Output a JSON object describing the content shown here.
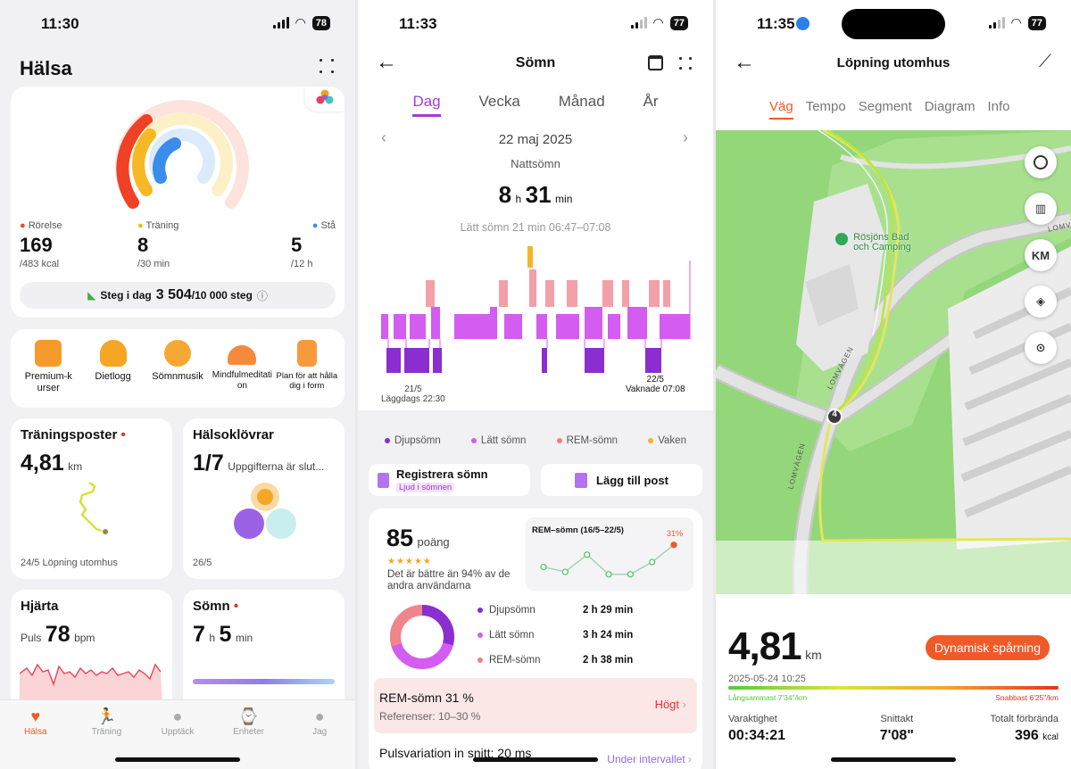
{
  "s1": {
    "status": {
      "time": "11:30",
      "battery": "78"
    },
    "title": "Hälsa",
    "rings": {
      "items": [
        {
          "label": "Rörelse",
          "value": "169",
          "goal": "/483 kcal",
          "color": "#f0462d",
          "progress": 0.35
        },
        {
          "label": "Träning",
          "value": "8",
          "goal": "/30 min",
          "color": "#f6b925",
          "progress": 0.27
        },
        {
          "label": "Stå",
          "value": "5",
          "goal": "/12 h",
          "color": "#3a8dea",
          "progress": 0.42
        }
      ],
      "steps_prefix": "Steg i dag",
      "steps_value": "3 504",
      "steps_goal": "/10 000 steg"
    },
    "shortcuts": [
      {
        "label": "Premium-kurser"
      },
      {
        "label": "Dietlogg"
      },
      {
        "label": "Sömnmusik"
      },
      {
        "label": "Mindfulmeditation"
      },
      {
        "label": "Plan för att hålla dig i form"
      }
    ],
    "training": {
      "title": "Träningsposter",
      "value": "4,81",
      "unit": "km",
      "footer": "24/5 Löpning utomhus"
    },
    "clovers": {
      "title": "Hälsoklövrar",
      "value": "1/7",
      "sub": "Uppgifterna är slut...",
      "footer": "26/5"
    },
    "heart": {
      "title": "Hjärta",
      "prefix": "Puls",
      "value": "78",
      "unit": "bpm"
    },
    "sleep": {
      "title": "Sömn",
      "h": "7",
      "h_unit": "h",
      "m": "5",
      "m_unit": "min"
    },
    "nav": [
      "Hälsa",
      "Träning",
      "Upptäck",
      "Enheter",
      "Jag"
    ]
  },
  "s2": {
    "status": {
      "time": "11:33",
      "battery": "77"
    },
    "title": "Sömn",
    "tabs": [
      "Dag",
      "Vecka",
      "Månad",
      "År"
    ],
    "date": "22 maj 2025",
    "type": "Nattsömn",
    "dur_h": "8",
    "dur_h_unit": "h",
    "dur_m": "31",
    "dur_m_unit": "min",
    "info": "Lätt sömn 21 min 06:47–07:08",
    "start_date": "21/5",
    "start_label": "Läggdags 22:30",
    "end_date": "22/5",
    "end_label": "Vaknade 07:08",
    "legend": [
      {
        "label": "Djupsömn",
        "color": "#8a2ed0"
      },
      {
        "label": "Lätt sömn",
        "color": "#d45cf0"
      },
      {
        "label": "REM-sömn",
        "color": "#f07f80"
      },
      {
        "label": "Vaken",
        "color": "#f5b52a"
      }
    ],
    "btn_register": "Registrera sömn",
    "btn_register_badge": "Ljud i sömnen",
    "btn_add": "Lägg till post",
    "score": "85",
    "score_unit": "poäng",
    "score_text": "Det är bättre än 94% av de andra användarna",
    "rem_chart": {
      "title": "REM–sömn (16/5–22/5)",
      "label": "31%",
      "values": [
        22,
        20,
        27,
        19,
        19,
        24,
        31
      ]
    },
    "breakdown": [
      {
        "label": "Djupsömn",
        "value": "2 h 29 min",
        "color": "#8a2ed0"
      },
      {
        "label": "Lätt sömn",
        "value": "3 h 24 min",
        "color": "#d45cf0"
      },
      {
        "label": "REM-sömn",
        "value": "2 h 38 min",
        "color": "#f07f80"
      }
    ],
    "rem_title": "REM-sömn 31 %",
    "rem_ref": "Referenser: 10–30 %",
    "rem_status": "Högt",
    "hrv_title": "Pulsvariation in snitt: 20 ms",
    "hrv_status": "Under intervallet"
  },
  "s3": {
    "status": {
      "time": "11:35",
      "battery": "77"
    },
    "title": "Löpning utomhus",
    "tabs": [
      "Väg",
      "Tempo",
      "Segment",
      "Diagram",
      "Info"
    ],
    "map": {
      "poi": "Rösjöns Bad och Camping",
      "road1": "LOMVÄGEN",
      "road2": "LOMVÄGEN",
      "road3": "LOMV",
      "marker": "4",
      "km_btn": "KM"
    },
    "distance": "4,81",
    "unit": "km",
    "dynamic_btn": "Dynamisk spårning",
    "datetime": "2025-05-24 10:25",
    "slowest": "Långsammast 7'34\"/km",
    "fastest": "Snabbast 6'25\"/km",
    "stats": [
      {
        "label": "Varaktighet",
        "value": "00:34:21",
        "unit": ""
      },
      {
        "label": "Snittakt",
        "value": "7'08\"",
        "unit": ""
      },
      {
        "label": "Totalt förbrända",
        "value": "396",
        "unit": "kcal"
      }
    ]
  }
}
